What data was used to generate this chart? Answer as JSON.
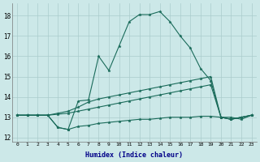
{
  "xlabel": "Humidex (Indice chaleur)",
  "bg_color": "#cce8e8",
  "line_color": "#1a6b5a",
  "grid_color": "#aacccc",
  "xlim": [
    -0.5,
    23.5
  ],
  "ylim": [
    11.8,
    18.6
  ],
  "yticks": [
    12,
    13,
    14,
    15,
    16,
    17,
    18
  ],
  "xticks": [
    0,
    1,
    2,
    3,
    4,
    5,
    6,
    7,
    8,
    9,
    10,
    11,
    12,
    13,
    14,
    15,
    16,
    17,
    18,
    19,
    20,
    21,
    22,
    23
  ],
  "lines": [
    {
      "x": [
        0,
        1,
        2,
        3,
        4,
        5,
        6,
        7,
        8,
        9,
        10,
        11,
        12,
        13,
        14,
        15,
        16,
        17,
        18,
        19,
        20,
        21,
        22,
        23
      ],
      "y": [
        13.1,
        13.1,
        13.1,
        13.1,
        12.5,
        12.4,
        13.8,
        13.85,
        16.0,
        15.3,
        16.5,
        17.7,
        18.05,
        18.05,
        18.2,
        17.7,
        17.0,
        16.4,
        15.4,
        14.8,
        13.0,
        13.0,
        12.9,
        13.1
      ]
    },
    {
      "x": [
        0,
        1,
        2,
        3,
        4,
        5,
        6,
        7,
        8,
        9,
        10,
        11,
        12,
        13,
        14,
        15,
        16,
        17,
        18,
        19,
        20,
        21,
        22,
        23
      ],
      "y": [
        13.1,
        13.1,
        13.1,
        13.1,
        12.5,
        12.4,
        12.55,
        12.6,
        12.7,
        12.75,
        12.8,
        12.85,
        12.9,
        12.9,
        12.95,
        13.0,
        13.0,
        13.0,
        13.05,
        13.05,
        13.0,
        12.9,
        13.0,
        13.1
      ]
    },
    {
      "x": [
        0,
        1,
        2,
        3,
        4,
        5,
        6,
        7,
        8,
        9,
        10,
        11,
        12,
        13,
        14,
        15,
        16,
        17,
        18,
        19,
        20,
        21,
        22,
        23
      ],
      "y": [
        13.1,
        13.1,
        13.1,
        13.1,
        13.2,
        13.3,
        13.5,
        13.75,
        13.9,
        14.0,
        14.1,
        14.2,
        14.3,
        14.4,
        14.5,
        14.6,
        14.7,
        14.8,
        14.9,
        15.0,
        13.0,
        12.9,
        13.0,
        13.1
      ]
    },
    {
      "x": [
        0,
        1,
        2,
        3,
        4,
        5,
        6,
        7,
        8,
        9,
        10,
        11,
        12,
        13,
        14,
        15,
        16,
        17,
        18,
        19,
        20,
        21,
        22,
        23
      ],
      "y": [
        13.1,
        13.1,
        13.1,
        13.1,
        13.15,
        13.2,
        13.3,
        13.4,
        13.5,
        13.6,
        13.7,
        13.8,
        13.9,
        14.0,
        14.1,
        14.2,
        14.3,
        14.4,
        14.5,
        14.6,
        13.0,
        12.9,
        13.0,
        13.1
      ]
    }
  ]
}
